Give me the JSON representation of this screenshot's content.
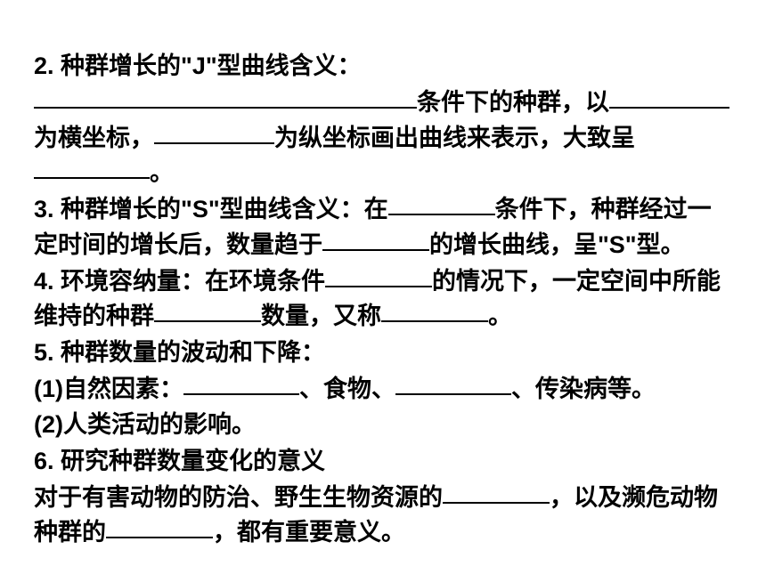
{
  "q2": {
    "title": "2. 种群增长的\"J\"型曲线含义：",
    "t1": "条件下的种群，以",
    "t2": "为横坐标，",
    "t3": "为纵坐标画出曲线来表示，大致呈",
    "t4": "。"
  },
  "q3": {
    "title": "3. 种群增长的\"S\"型曲线含义：在",
    "t1": "条件下，种群经过一定时间的增长后，数量趋于",
    "t2": "的增长曲线，呈\"S\"型。"
  },
  "q4": {
    "title": "4. 环境容纳量：在环境条件",
    "t1": "的情况下，一定空间中所能维持的种群",
    "t2": "数量，又称",
    "t3": "。"
  },
  "q5": {
    "title": "5. 种群数量的波动和下降：",
    "line1a": "(1)自然因素：",
    "line1b": "、食物、",
    "line1c": "、传染病等。",
    "line2": "(2)人类活动的影响。"
  },
  "q6": {
    "title": "6. 研究种群数量变化的意义",
    "t1": "对于有害动物的防治、野生生物资源的",
    "t2": "，以及濒危动物种群的",
    "t3": "，都有重要意义。"
  }
}
